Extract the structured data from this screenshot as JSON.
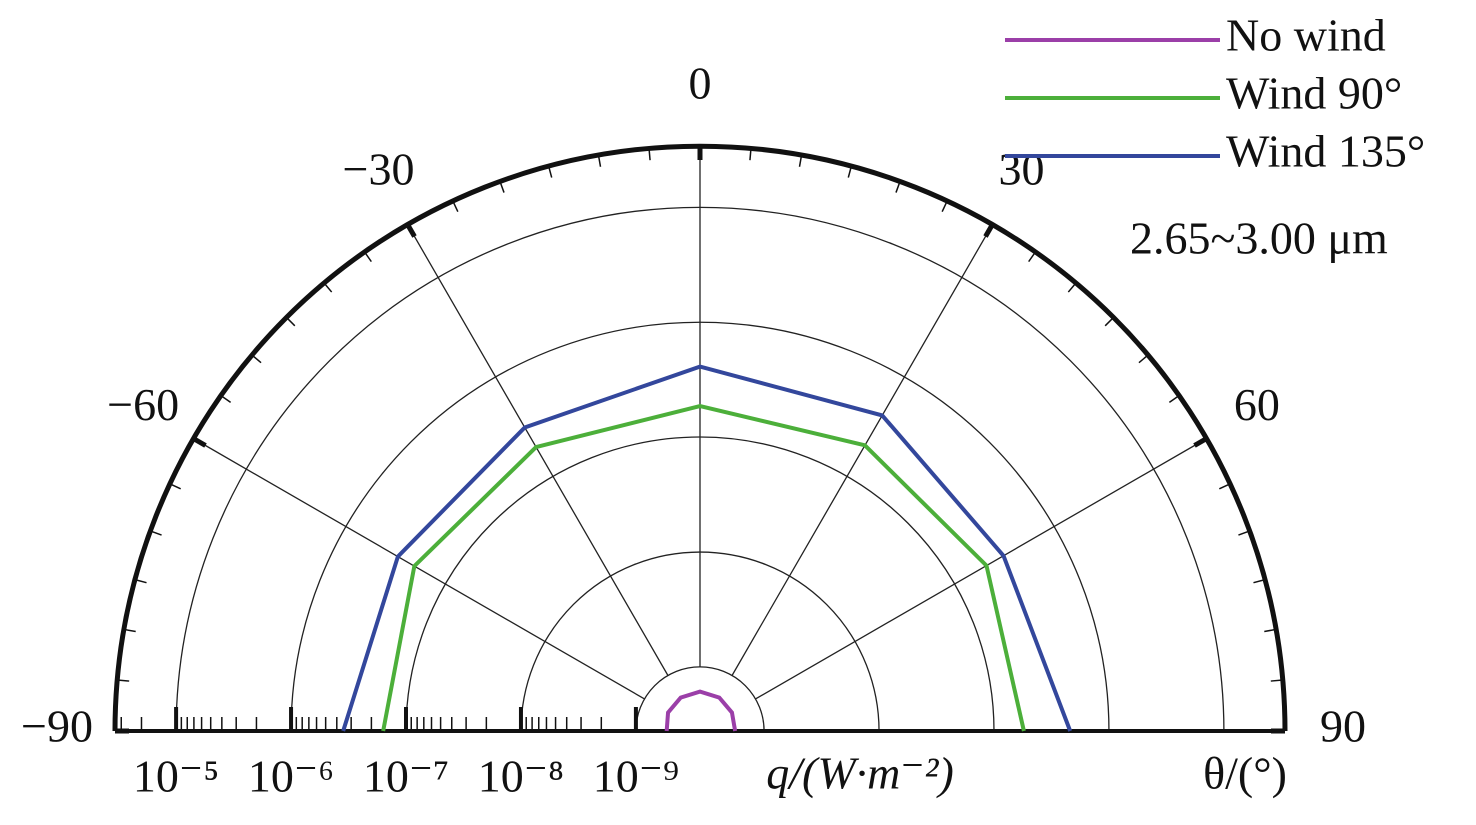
{
  "chart_data": {
    "type": "polar",
    "theta": [
      -90,
      -60,
      -30,
      0,
      30,
      60,
      90
    ],
    "series": [
      {
        "name": "No wind",
        "color": "#9b3fa8",
        "values": [
          5.4e-10,
          5.8e-10,
          6e-10,
          6.1e-10,
          6e-10,
          5.8e-10,
          5.6e-10
        ]
      },
      {
        "name": "Wind 90°",
        "color": "#4caf3a",
        "values": [
          1.58e-07,
          2.05e-07,
          1.97e-07,
          1.86e-07,
          2.05e-07,
          2.09e-07,
          1.82e-07
        ]
      },
      {
        "name": "Wind 135°",
        "color": "#33479c",
        "values": [
          3.52e-07,
          3e-07,
          3.1e-07,
          4.1e-07,
          4.1e-07,
          3.1e-07,
          4.6e-07
        ]
      }
    ],
    "thetalim": [
      -90,
      90
    ],
    "thetaticks": [
      {
        "value": -90,
        "label": "−90"
      },
      {
        "value": -60,
        "label": "−60"
      },
      {
        "value": -30,
        "label": "−30"
      },
      0,
      30,
      60,
      90
    ],
    "rlim": [
      2.77e-10,
      3.4e-05
    ],
    "rscale": "log",
    "rticks": [
      {
        "value": 1e-05,
        "label": "10⁻⁵"
      },
      {
        "value": 1e-06,
        "label": "10⁻⁶"
      },
      {
        "value": 1e-07,
        "label": "10⁻⁷"
      },
      {
        "value": 1e-08,
        "label": "10⁻⁸"
      },
      {
        "value": 1e-09,
        "label": "10⁻⁹"
      }
    ],
    "r_label": "q/(W·m⁻²)",
    "theta_label": "θ/(°)",
    "annotation": "2.65~3.00 μm",
    "grid": true,
    "legend": "upper right"
  }
}
